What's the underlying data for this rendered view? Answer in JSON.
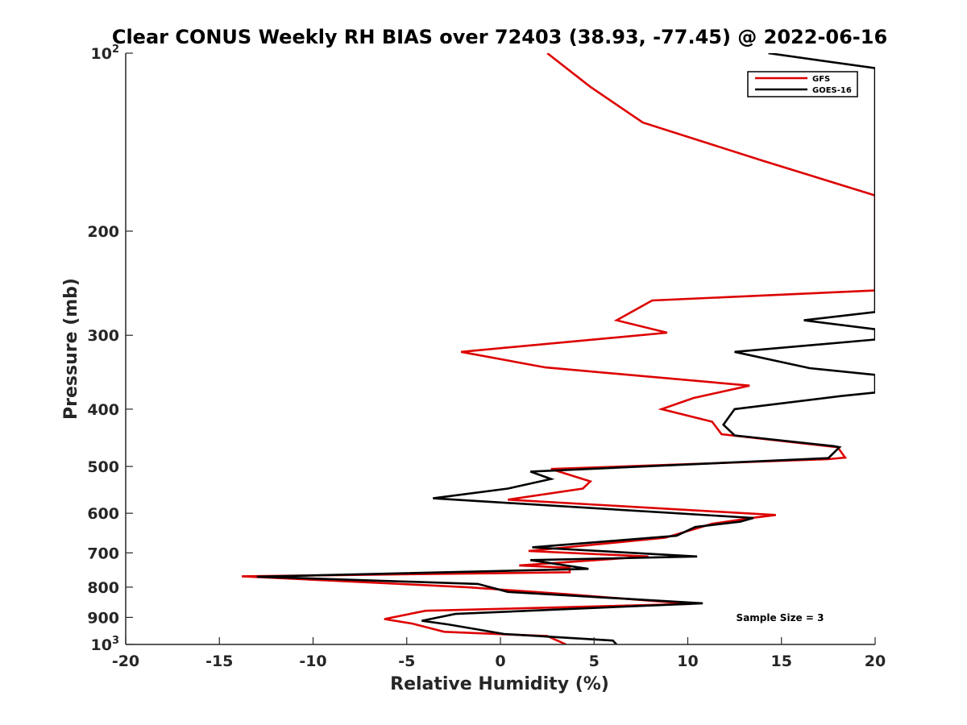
{
  "chart_data": {
    "type": "line",
    "title": "Clear CONUS Weekly RH BIAS over 72403 (38.93, -77.45) @ 2022-06-16",
    "xlabel": "Relative Humidity (%)",
    "ylabel": "Pressure (mb)",
    "xlim": [
      -20,
      20
    ],
    "ylim": [
      100,
      1000
    ],
    "y_scale": "log",
    "y_direction": "reversed",
    "grid": false,
    "legend_position": "top-right",
    "xticks": [
      -20,
      -15,
      -10,
      -5,
      0,
      5,
      10,
      15,
      20
    ],
    "xtick_labels": [
      "-20",
      "-15",
      "-10",
      "-5",
      "0",
      "5",
      "10",
      "15",
      "20"
    ],
    "yticks": [
      {
        "value": 100,
        "base": "10",
        "exp": "2"
      },
      {
        "value": 200,
        "base": "200",
        "exp": ""
      },
      {
        "value": 300,
        "base": "300",
        "exp": ""
      },
      {
        "value": 400,
        "base": "400",
        "exp": ""
      },
      {
        "value": 500,
        "base": "500",
        "exp": ""
      },
      {
        "value": 600,
        "base": "600",
        "exp": ""
      },
      {
        "value": 700,
        "base": "700",
        "exp": ""
      },
      {
        "value": 800,
        "base": "800",
        "exp": ""
      },
      {
        "value": 900,
        "base": "900",
        "exp": ""
      },
      {
        "value": 1000,
        "base": "10",
        "exp": "3"
      }
    ],
    "annotation": "Sample Size = 3",
    "series": [
      {
        "name": "GFS",
        "color": "#dd0000",
        "points": [
          [
            2.5,
            100
          ],
          [
            4.8,
            114
          ],
          [
            7.6,
            131
          ],
          [
            14.0,
            152
          ],
          [
            20.0,
            174
          ],
          [
            20.0,
            243
          ],
          [
            20.0,
            252
          ],
          [
            8.1,
            262
          ],
          [
            6.2,
            283
          ],
          [
            8.9,
            297
          ],
          [
            -2.1,
            320
          ],
          [
            2.4,
            340
          ],
          [
            13.3,
            365
          ],
          [
            10.3,
            383
          ],
          [
            8.6,
            400
          ],
          [
            11.3,
            420
          ],
          [
            11.8,
            441
          ],
          [
            18.0,
            464
          ],
          [
            18.4,
            483
          ],
          [
            17.5,
            486
          ],
          [
            2.7,
            505
          ],
          [
            4.8,
            530
          ],
          [
            4.4,
            545
          ],
          [
            0.4,
            569
          ],
          [
            14.7,
            604
          ],
          [
            13.6,
            610
          ],
          [
            11.3,
            625
          ],
          [
            8.8,
            660
          ],
          [
            1.5,
            695
          ],
          [
            7.9,
            710
          ],
          [
            1.0,
            735
          ],
          [
            3.7,
            742
          ],
          [
            3.7,
            755
          ],
          [
            -13.8,
            767
          ],
          [
            -1.8,
            800
          ],
          [
            3.5,
            822
          ],
          [
            10.2,
            854
          ],
          [
            -4.0,
            877
          ],
          [
            -6.2,
            906
          ],
          [
            -4.7,
            922
          ],
          [
            -3.0,
            952
          ],
          [
            2.5,
            968
          ],
          [
            3.5,
            1000
          ]
        ]
      },
      {
        "name": "GOES-16",
        "color": "#000000",
        "points": [
          [
            14.3,
            100
          ],
          [
            20.0,
            106
          ],
          [
            20.0,
            274
          ],
          [
            16.2,
            283
          ],
          [
            20.0,
            293
          ],
          [
            20.0,
            305
          ],
          [
            12.5,
            320
          ],
          [
            16.5,
            341
          ],
          [
            20.0,
            350
          ],
          [
            20.0,
            375
          ],
          [
            18.2,
            380
          ],
          [
            12.5,
            400
          ],
          [
            11.9,
            425
          ],
          [
            12.5,
            443
          ],
          [
            17.8,
            462
          ],
          [
            18.1,
            464
          ],
          [
            17.5,
            484
          ],
          [
            1.6,
            510
          ],
          [
            2.7,
            525
          ],
          [
            0.4,
            545
          ],
          [
            -3.6,
            566
          ],
          [
            13.5,
            611
          ],
          [
            12.8,
            620
          ],
          [
            10.4,
            633
          ],
          [
            9.4,
            655
          ],
          [
            1.7,
            685
          ],
          [
            10.5,
            710
          ],
          [
            1.6,
            720
          ],
          [
            4.7,
            745
          ],
          [
            -13.0,
            768
          ],
          [
            -1.2,
            790
          ],
          [
            0.4,
            815
          ],
          [
            10.8,
            852
          ],
          [
            -2.4,
            888
          ],
          [
            -4.2,
            912
          ],
          [
            -2.8,
            925
          ],
          [
            0.2,
            960
          ],
          [
            6.0,
            985
          ],
          [
            6.2,
            1000
          ]
        ]
      }
    ]
  }
}
